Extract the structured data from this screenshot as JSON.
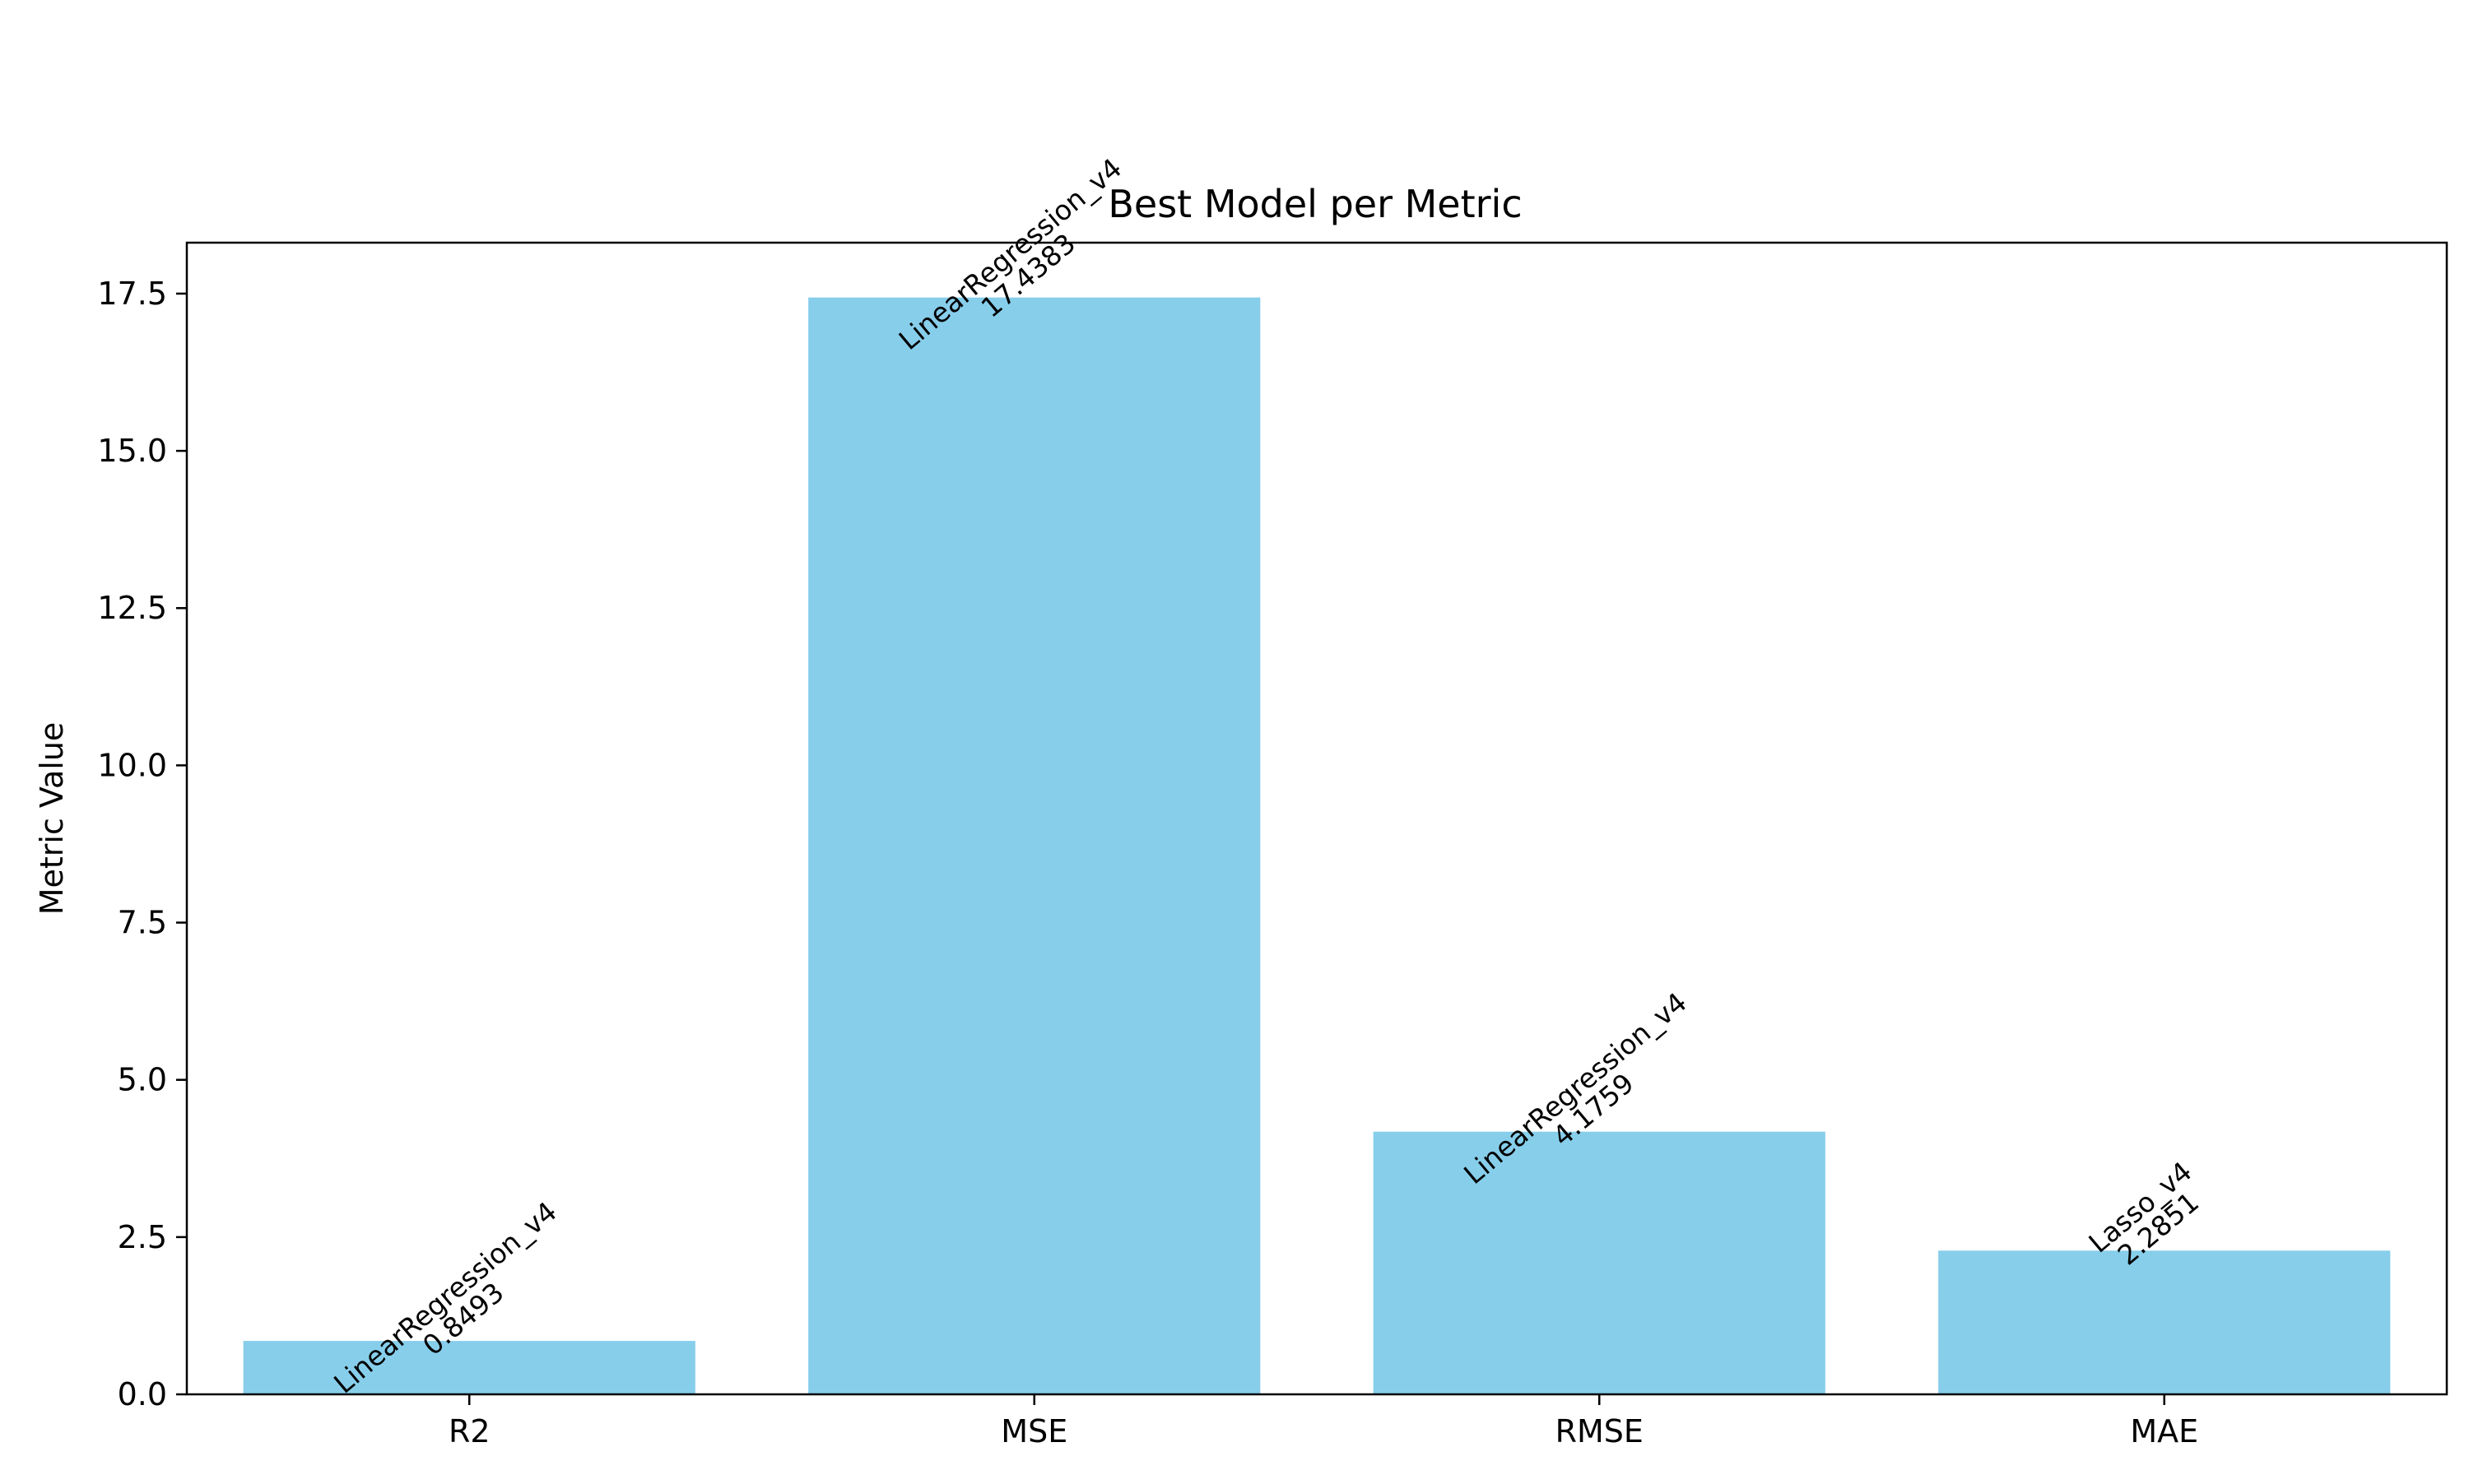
{
  "chart_data": {
    "type": "bar",
    "title": "Best Model per Metric",
    "xlabel": "",
    "ylabel": "Metric Value",
    "categories": [
      "R2",
      "MSE",
      "RMSE",
      "MAE"
    ],
    "values": [
      0.8493,
      17.4383,
      4.1759,
      2.2851
    ],
    "bar_labels": [
      {
        "model": "LinearRegression_v4",
        "value": "0.8493"
      },
      {
        "model": "LinearRegression_v4",
        "value": "17.4383"
      },
      {
        "model": "LinearRegression_v4",
        "value": "4.1759"
      },
      {
        "model": "Lasso_v4",
        "value": "2.2851"
      }
    ],
    "yticks": [
      "0.0",
      "2.5",
      "5.0",
      "7.5",
      "10.0",
      "12.5",
      "15.0",
      "17.5"
    ],
    "ylim": [
      0,
      18.31
    ],
    "grid": false,
    "legend": "none",
    "bar_color": "#87CEEB"
  }
}
